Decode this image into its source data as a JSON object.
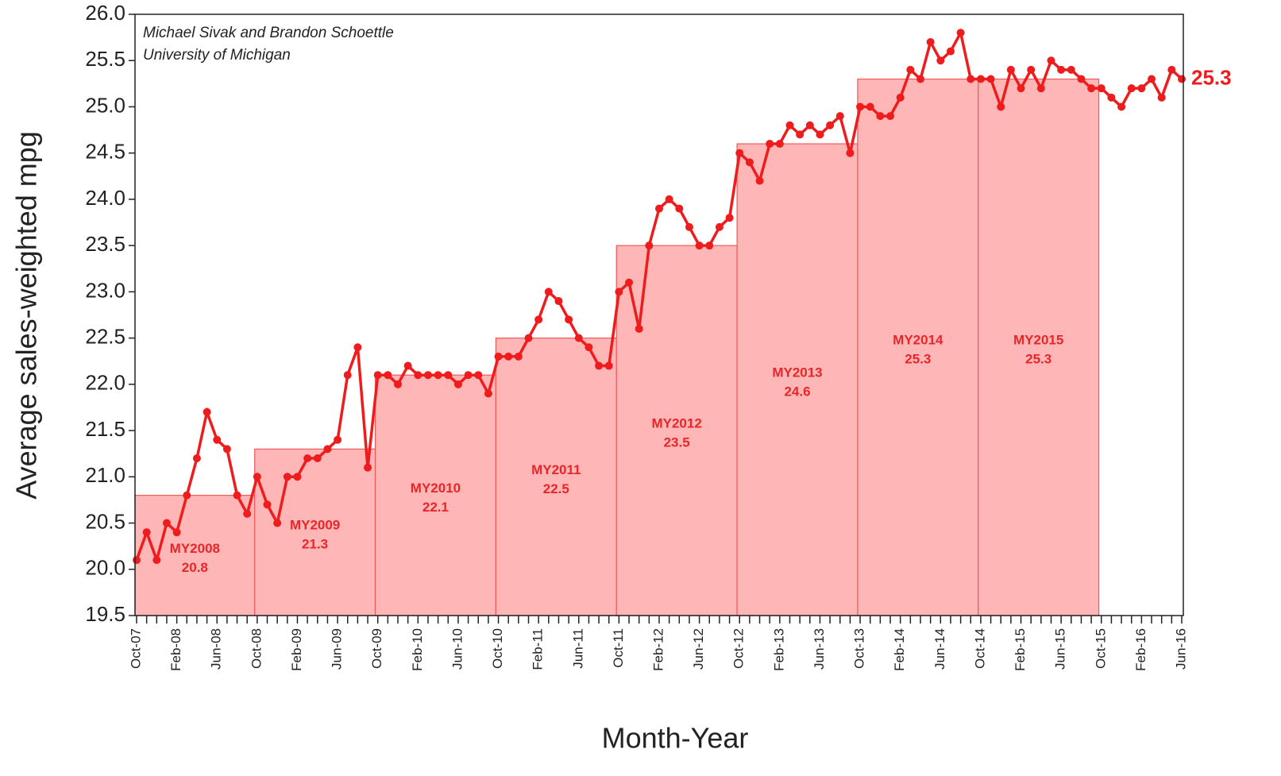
{
  "chart_data": {
    "type": "line",
    "annotation": [
      "Michael Sivak and Brandon Schoettle",
      "University of Michigan"
    ],
    "y_label": "Average sales-weighted mpg",
    "x_label": "Month-Year",
    "categories": [
      "Oct-07",
      null,
      null,
      null,
      "Feb-08",
      null,
      null,
      null,
      "Jun-08",
      null,
      null,
      null,
      "Oct-08",
      null,
      null,
      null,
      "Feb-09",
      null,
      null,
      null,
      "Jun-09",
      null,
      null,
      null,
      "Oct-09",
      null,
      null,
      null,
      "Feb-10",
      null,
      null,
      null,
      "Jun-10",
      null,
      null,
      null,
      "Oct-10",
      null,
      null,
      null,
      "Feb-11",
      null,
      null,
      null,
      "Jun-11",
      null,
      null,
      null,
      "Oct-11",
      null,
      null,
      null,
      "Feb-12",
      null,
      null,
      null,
      "Jun-12",
      null,
      null,
      null,
      "Oct-12",
      null,
      null,
      null,
      "Feb-13",
      null,
      null,
      null,
      "Jun-13",
      null,
      null,
      null,
      "Oct-13",
      null,
      null,
      null,
      "Feb-14",
      null,
      null,
      null,
      "Jun-14",
      null,
      null,
      null,
      "Oct-14",
      null,
      null,
      null,
      "Feb-15",
      null,
      null,
      null,
      "Jun-15",
      null,
      null,
      null,
      "Oct-15",
      null,
      null,
      null,
      "Feb-16",
      null,
      null,
      null,
      "Jun-16"
    ],
    "series": [
      {
        "color": "#ee1c1c",
        "values": [
          20.1,
          20.4,
          20.1,
          20.5,
          20.4,
          20.8,
          21.2,
          21.7,
          21.4,
          21.3,
          20.8,
          20.6,
          21.0,
          20.7,
          20.5,
          21.0,
          21.0,
          21.2,
          21.2,
          21.3,
          21.4,
          22.1,
          22.4,
          21.1,
          22.1,
          22.1,
          22.0,
          22.2,
          22.1,
          22.1,
          22.1,
          22.1,
          22.0,
          22.1,
          22.1,
          21.9,
          22.3,
          22.3,
          22.3,
          22.5,
          22.7,
          23.0,
          22.9,
          22.7,
          22.5,
          22.4,
          22.2,
          22.2,
          23.0,
          23.1,
          22.6,
          23.5,
          23.9,
          24.0,
          23.9,
          23.7,
          23.5,
          23.5,
          23.7,
          23.8,
          24.5,
          24.4,
          24.2,
          24.6,
          24.6,
          24.8,
          24.7,
          24.8,
          24.7,
          24.8,
          24.9,
          24.5,
          25.0,
          25.0,
          24.9,
          24.9,
          25.1,
          25.4,
          25.3,
          25.7,
          25.5,
          25.6,
          25.8,
          25.3,
          25.3,
          25.3,
          25.0,
          25.4,
          25.2,
          25.4,
          25.2,
          25.5,
          25.4,
          25.4,
          25.3,
          25.2,
          25.2,
          25.1,
          25.0,
          25.2,
          25.2,
          25.3,
          25.1,
          25.4,
          25.3
        ]
      }
    ],
    "model_years": {
      "color": "#ffb6b6",
      "edge_color": "#f25a5a",
      "names": [
        "MY2008",
        "MY2009",
        "MY2010",
        "MY2011",
        "MY2012",
        "MY2013",
        "MY2014",
        "MY2015"
      ],
      "values": [
        20.8,
        21.3,
        22.1,
        22.5,
        23.5,
        24.6,
        25.3,
        25.3
      ]
    },
    "ylim": [
      19.5,
      26.0
    ],
    "yticks": [
      19.5,
      {
        "value": 20,
        "label": "20.0"
      },
      20.5,
      {
        "value": 21,
        "label": "21.0"
      },
      21.5,
      {
        "value": 22,
        "label": "22.0"
      },
      22.5,
      {
        "value": 23,
        "label": "23.0"
      },
      23.5,
      {
        "value": 24,
        "label": "24.0"
      },
      24.5,
      {
        "value": 25,
        "label": "25.0"
      },
      25.5,
      {
        "value": 26,
        "label": "26.0"
      }
    ]
  }
}
